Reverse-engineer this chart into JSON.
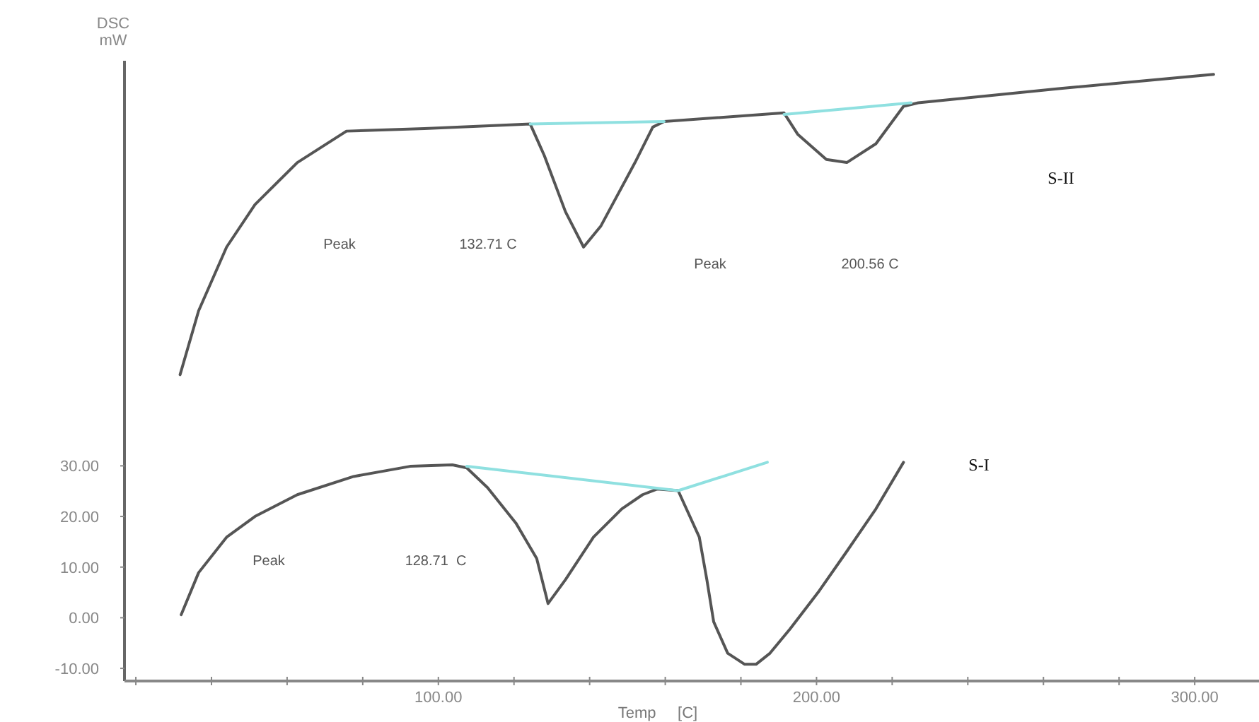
{
  "chart_data": {
    "type": "line",
    "xlabel": "Temp     [C]",
    "ylabel": "DSC\nmW",
    "xlim": [
      17,
      317
    ],
    "ylim": [
      -12.5,
      110
    ],
    "xticks": [
      {
        "value": 20,
        "label": null
      },
      {
        "value": 40,
        "label": null
      },
      {
        "value": 60,
        "label": null
      },
      {
        "value": 80,
        "label": null
      },
      {
        "value": 100,
        "label": "100.00"
      },
      {
        "value": 120,
        "label": null
      },
      {
        "value": 140,
        "label": null
      },
      {
        "value": 160,
        "label": null
      },
      {
        "value": 180,
        "label": null
      },
      {
        "value": 200,
        "label": "200.00"
      },
      {
        "value": 220,
        "label": null
      },
      {
        "value": 240,
        "label": null
      },
      {
        "value": 260,
        "label": null
      },
      {
        "value": 280,
        "label": null
      },
      {
        "value": 300,
        "label": "300.00"
      }
    ],
    "yticks": [
      {
        "value": -10,
        "label": "-10.00"
      },
      {
        "value": 0,
        "label": "0.00"
      },
      {
        "value": 10,
        "label": "10.00"
      },
      {
        "value": 20,
        "label": "20.00"
      },
      {
        "value": 30,
        "label": "30.00"
      }
    ],
    "grid": false,
    "marker": "none",
    "line_style": "solid",
    "series": [
      {
        "color": "#555555",
        "x": [
          32,
          36.6,
          44,
          51.5,
          62.7,
          77.6,
          92.5,
          103.7,
          107.5,
          113,
          120.5,
          126,
          129,
          133.6,
          141,
          148.5,
          154,
          157.8,
          163.4,
          169,
          171,
          172.8,
          176.5,
          181,
          184,
          187.7,
          193,
          200.7,
          208,
          215.7,
          223
        ],
        "values": [
          0.6,
          8.9,
          15.9,
          20,
          24.3,
          27.9,
          29.9,
          30.2,
          29.6,
          25.7,
          18.7,
          11.7,
          2.8,
          7.5,
          15.9,
          21.5,
          24.3,
          25.4,
          25.1,
          15.9,
          7.5,
          -0.8,
          -7,
          -9.2,
          -9.2,
          -7,
          -2.2,
          5.3,
          13.1,
          21.5,
          30.7
        ]
      },
      {
        "color": "#555555",
        "x": [
          31.7,
          36.6,
          44,
          51.5,
          62.7,
          75.7,
          96.3,
          124.3,
          128,
          133.6,
          138.4,
          143,
          152,
          156.7,
          159.7,
          191.4,
          195,
          202.6,
          208,
          215.7,
          223,
          226.9,
          264,
          305
        ],
        "values": [
          48,
          60.6,
          73.2,
          81.6,
          89.9,
          96.1,
          96.6,
          97.5,
          91.3,
          80.2,
          73.2,
          77.4,
          89.9,
          96.9,
          98,
          99.7,
          95.5,
          90.5,
          89.9,
          93.6,
          101,
          101.7,
          104.5,
          107.3
        ]
      },
      {
        "color": "#8fe0e0",
        "x": [
          107.5,
          163.4,
          187
        ],
        "values": [
          29.9,
          25.1,
          30.7
        ]
      },
      {
        "color": "#8fe0e0",
        "x": [
          124.3,
          159.7
        ],
        "values": [
          97.5,
          98
        ]
      },
      {
        "color": "#8fe0e0",
        "x": [
          191.4,
          225
        ],
        "values": [
          99.4,
          101.7
        ]
      }
    ],
    "annotations": [
      "Peak",
      "132.71 C",
      "Peak",
      "200.56 C",
      "Peak",
      "128.71  C",
      "S-II",
      "S-I"
    ]
  }
}
